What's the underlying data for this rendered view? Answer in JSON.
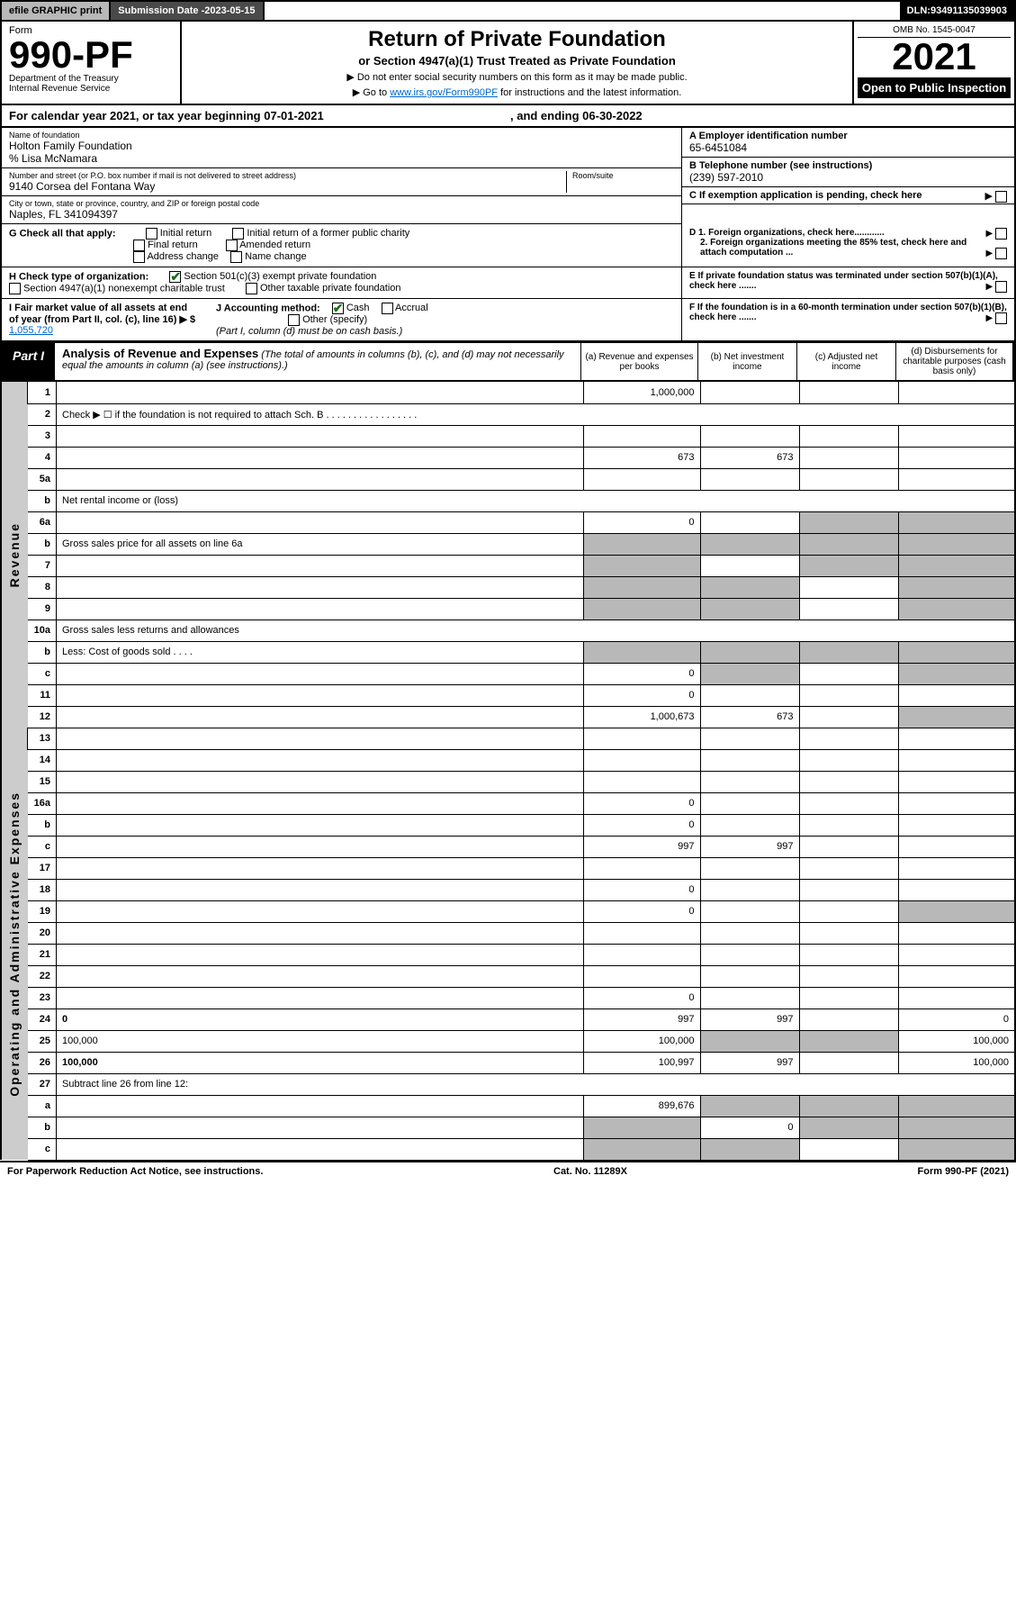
{
  "topbar": {
    "efile": "efile GRAPHIC print",
    "subdate_lbl": "Submission Date - ",
    "subdate": "2023-05-15",
    "dln_lbl": "DLN: ",
    "dln": "93491135039903"
  },
  "header": {
    "form_word": "Form",
    "form_no": "990-PF",
    "dept": "Department of the Treasury",
    "irs": "Internal Revenue Service",
    "title": "Return of Private Foundation",
    "subtitle": "or Section 4947(a)(1) Trust Treated as Private Foundation",
    "note1": "▶ Do not enter social security numbers on this form as it may be made public.",
    "note2_pre": "▶ Go to ",
    "note2_link": "www.irs.gov/Form990PF",
    "note2_post": " for instructions and the latest information.",
    "omb": "OMB No. 1545-0047",
    "year": "2021",
    "open": "Open to Public Inspection"
  },
  "calyear": {
    "pre": "For calendar year 2021, or tax year beginning ",
    "begin": "07-01-2021",
    "mid": " , and ending ",
    "end": "06-30-2022"
  },
  "id": {
    "name_lbl": "Name of foundation",
    "name": "Holton Family Foundation",
    "care": "% Lisa McNamara",
    "addr_lbl": "Number and street (or P.O. box number if mail is not delivered to street address)",
    "addr": "9140 Corsea del Fontana Way",
    "room_lbl": "Room/suite",
    "city_lbl": "City or town, state or province, country, and ZIP or foreign postal code",
    "city": "Naples, FL 341094397",
    "ein_lbl": "A Employer identification number",
    "ein": "65-6451084",
    "tel_lbl": "B Telephone number (see instructions)",
    "tel": "(239) 597-2010",
    "c_lbl": "C If exemption application is pending, check here"
  },
  "checks": {
    "g_lbl": "G Check all that apply:",
    "g_opts": [
      "Initial return",
      "Initial return of a former public charity",
      "Final return",
      "Amended return",
      "Address change",
      "Name change"
    ],
    "h_lbl": "H Check type of organization:",
    "h1": "Section 501(c)(3) exempt private foundation",
    "h2": "Section 4947(a)(1) nonexempt charitable trust",
    "h3": "Other taxable private foundation",
    "i_lbl": "I Fair market value of all assets at end of year (from Part II, col. (c), line 16) ▶ $",
    "i_val": "1,055,720",
    "j_lbl": "J Accounting method:",
    "j_cash": "Cash",
    "j_accrual": "Accrual",
    "j_other": "Other (specify)",
    "j_note": "(Part I, column (d) must be on cash basis.)",
    "d1": "D 1. Foreign organizations, check here............",
    "d2": "2. Foreign organizations meeting the 85% test, check here and attach computation ...",
    "e": "E If private foundation status was terminated under section 507(b)(1)(A), check here .......",
    "f": "F If the foundation is in a 60-month termination under section 507(b)(1)(B), check here ......."
  },
  "part1": {
    "label": "Part I",
    "title": "Analysis of Revenue and Expenses",
    "title_note": "(The total of amounts in columns (b), (c), and (d) may not necessarily equal the amounts in column (a) (see instructions).)",
    "colA": "(a) Revenue and expenses per books",
    "colB": "(b) Net investment income",
    "colC": "(c) Adjusted net income",
    "colD": "(d) Disbursements for charitable purposes (cash basis only)"
  },
  "sides": {
    "rev": "Revenue",
    "exp": "Operating and Administrative Expenses"
  },
  "rows": [
    {
      "n": "1",
      "d": "",
      "a": "1,000,000",
      "b": "",
      "c": ""
    },
    {
      "n": "2",
      "d": "Check ▶ ☐ if the foundation is not required to attach Sch. B  . . . . . . . . . . . . . . . . .",
      "nocols": true
    },
    {
      "n": "3",
      "d": "",
      "a": "",
      "b": "",
      "c": ""
    },
    {
      "n": "4",
      "d": "",
      "a": "673",
      "b": "673",
      "c": ""
    },
    {
      "n": "5a",
      "d": "",
      "a": "",
      "b": "",
      "c": ""
    },
    {
      "n": "b",
      "d": "Net rental income or (loss)",
      "nocols": true,
      "inline": true
    },
    {
      "n": "6a",
      "d": "",
      "a": "0",
      "b": "",
      "c": "",
      "shadeC": true,
      "shadeD": true
    },
    {
      "n": "b",
      "d": "Gross sales price for all assets on line 6a",
      "nocols": true,
      "inline": true,
      "shadeAll": true
    },
    {
      "n": "7",
      "d": "",
      "a": "",
      "b": "",
      "c": "",
      "shadeA": true,
      "shadeC": true,
      "shadeD": true
    },
    {
      "n": "8",
      "d": "",
      "a": "",
      "b": "",
      "c": "",
      "shadeA": true,
      "shadeB": true,
      "shadeD": true
    },
    {
      "n": "9",
      "d": "",
      "a": "",
      "b": "",
      "c": "",
      "shadeA": true,
      "shadeB": true,
      "shadeD": true
    },
    {
      "n": "10a",
      "d": "Gross sales less returns and allowances",
      "nocols": true,
      "inline": true
    },
    {
      "n": "b",
      "d": "Less: Cost of goods sold  . . . .",
      "nocols": true,
      "inline": true,
      "shadeAll": true
    },
    {
      "n": "c",
      "d": "",
      "a": "0",
      "b": "",
      "c": "",
      "shadeB": true,
      "shadeD": true
    },
    {
      "n": "11",
      "d": "",
      "a": "0",
      "b": "",
      "c": ""
    },
    {
      "n": "12",
      "d": "",
      "a": "1,000,673",
      "b": "673",
      "c": "",
      "bold": true,
      "shadeD": true
    },
    {
      "n": "13",
      "d": "",
      "a": "",
      "b": "",
      "c": ""
    },
    {
      "n": "14",
      "d": "",
      "a": "",
      "b": "",
      "c": ""
    },
    {
      "n": "15",
      "d": "",
      "a": "",
      "b": "",
      "c": ""
    },
    {
      "n": "16a",
      "d": "",
      "a": "0",
      "b": "",
      "c": ""
    },
    {
      "n": "b",
      "d": "",
      "a": "0",
      "b": "",
      "c": ""
    },
    {
      "n": "c",
      "d": "",
      "a": "997",
      "b": "997",
      "c": ""
    },
    {
      "n": "17",
      "d": "",
      "a": "",
      "b": "",
      "c": ""
    },
    {
      "n": "18",
      "d": "",
      "a": "0",
      "b": "",
      "c": ""
    },
    {
      "n": "19",
      "d": "",
      "a": "0",
      "b": "",
      "c": "",
      "shadeD": true
    },
    {
      "n": "20",
      "d": "",
      "a": "",
      "b": "",
      "c": ""
    },
    {
      "n": "21",
      "d": "",
      "a": "",
      "b": "",
      "c": ""
    },
    {
      "n": "22",
      "d": "",
      "a": "",
      "b": "",
      "c": ""
    },
    {
      "n": "23",
      "d": "",
      "a": "0",
      "b": "",
      "c": ""
    },
    {
      "n": "24",
      "d": "0",
      "a": "997",
      "b": "997",
      "c": "",
      "bold": true
    },
    {
      "n": "25",
      "d": "100,000",
      "a": "100,000",
      "b": "",
      "c": "",
      "shadeB": true,
      "shadeC": true
    },
    {
      "n": "26",
      "d": "100,000",
      "a": "100,997",
      "b": "997",
      "c": "",
      "bold": true
    },
    {
      "n": "27",
      "d": "Subtract line 26 from line 12:",
      "nocols": true
    },
    {
      "n": "a",
      "d": "",
      "a": "899,676",
      "b": "",
      "c": "",
      "bold": true,
      "shadeB": true,
      "shadeC": true,
      "shadeD": true
    },
    {
      "n": "b",
      "d": "",
      "a": "",
      "b": "0",
      "c": "",
      "bold": true,
      "shadeA": true,
      "shadeC": true,
      "shadeD": true
    },
    {
      "n": "c",
      "d": "",
      "a": "",
      "b": "",
      "c": "",
      "bold": true,
      "shadeA": true,
      "shadeB": true,
      "shadeD": true
    }
  ],
  "footer": {
    "left": "For Paperwork Reduction Act Notice, see instructions.",
    "mid": "Cat. No. 11289X",
    "right": "Form 990-PF (2021)"
  }
}
